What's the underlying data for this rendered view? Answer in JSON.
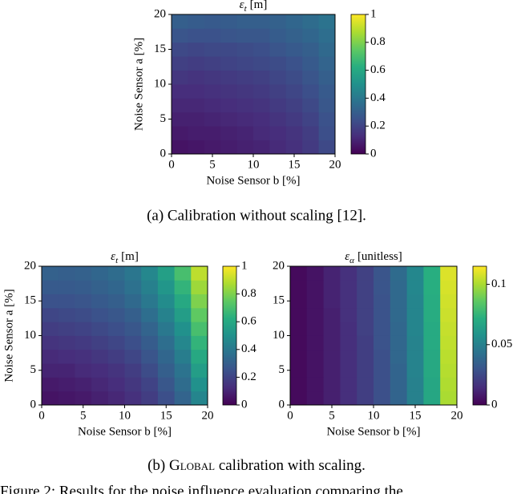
{
  "chart_data": [
    {
      "type": "heatmap",
      "title_symbol": "ε",
      "title_sub": "t",
      "title_unit": "[m]",
      "xlabel": "Noise Sensor b [%]",
      "ylabel": "Noise Sensor a [%]",
      "xlim": [
        0,
        20
      ],
      "ylim": [
        0,
        20
      ],
      "xticks": [
        0,
        5,
        10,
        15,
        20
      ],
      "yticks": [
        0,
        5,
        10,
        15,
        20
      ],
      "colormap": "viridis",
      "zlim": [
        0,
        1
      ],
      "zticks": [
        0,
        0.2,
        0.4,
        0.6,
        0.8,
        1
      ],
      "values": [
        [
          0.05,
          0.06,
          0.07,
          0.08,
          0.09,
          0.1,
          0.12,
          0.14,
          0.17,
          0.22
        ],
        [
          0.07,
          0.08,
          0.08,
          0.09,
          0.1,
          0.12,
          0.13,
          0.15,
          0.18,
          0.24
        ],
        [
          0.09,
          0.09,
          0.1,
          0.11,
          0.12,
          0.13,
          0.15,
          0.17,
          0.2,
          0.25
        ],
        [
          0.11,
          0.11,
          0.12,
          0.13,
          0.14,
          0.15,
          0.17,
          0.19,
          0.22,
          0.27
        ],
        [
          0.13,
          0.13,
          0.14,
          0.15,
          0.16,
          0.17,
          0.19,
          0.21,
          0.24,
          0.28
        ],
        [
          0.16,
          0.15,
          0.16,
          0.17,
          0.18,
          0.19,
          0.21,
          0.23,
          0.26,
          0.3
        ],
        [
          0.19,
          0.18,
          0.19,
          0.2,
          0.21,
          0.22,
          0.23,
          0.25,
          0.28,
          0.32
        ],
        [
          0.22,
          0.21,
          0.22,
          0.22,
          0.23,
          0.24,
          0.26,
          0.28,
          0.3,
          0.34
        ],
        [
          0.26,
          0.25,
          0.25,
          0.26,
          0.27,
          0.27,
          0.29,
          0.31,
          0.33,
          0.36
        ],
        [
          0.3,
          0.29,
          0.28,
          0.29,
          0.3,
          0.3,
          0.31,
          0.33,
          0.35,
          0.38
        ]
      ]
    },
    {
      "type": "heatmap",
      "title_symbol": "ε",
      "title_sub": "t",
      "title_unit": "[m]",
      "xlabel": "Noise Sensor b [%]",
      "ylabel": "Noise Sensor a [%]",
      "xlim": [
        0,
        20
      ],
      "ylim": [
        0,
        20
      ],
      "xticks": [
        0,
        5,
        10,
        15,
        20
      ],
      "yticks": [
        0,
        5,
        10,
        15,
        20
      ],
      "colormap": "viridis",
      "zlim": [
        0,
        1
      ],
      "zticks": [
        0,
        0.2,
        0.4,
        0.6,
        0.8,
        1
      ],
      "values": [
        [
          0.05,
          0.06,
          0.07,
          0.09,
          0.11,
          0.14,
          0.18,
          0.24,
          0.32,
          0.45
        ],
        [
          0.07,
          0.08,
          0.09,
          0.11,
          0.13,
          0.16,
          0.2,
          0.27,
          0.35,
          0.5
        ],
        [
          0.1,
          0.1,
          0.12,
          0.13,
          0.15,
          0.18,
          0.23,
          0.3,
          0.38,
          0.55
        ],
        [
          0.12,
          0.13,
          0.14,
          0.16,
          0.18,
          0.21,
          0.26,
          0.33,
          0.42,
          0.6
        ],
        [
          0.15,
          0.16,
          0.17,
          0.19,
          0.21,
          0.24,
          0.29,
          0.36,
          0.46,
          0.65
        ],
        [
          0.18,
          0.19,
          0.2,
          0.22,
          0.24,
          0.27,
          0.32,
          0.4,
          0.5,
          0.7
        ],
        [
          0.21,
          0.22,
          0.23,
          0.25,
          0.27,
          0.3,
          0.36,
          0.44,
          0.55,
          0.75
        ],
        [
          0.25,
          0.25,
          0.26,
          0.28,
          0.3,
          0.34,
          0.4,
          0.48,
          0.6,
          0.8
        ],
        [
          0.28,
          0.28,
          0.29,
          0.31,
          0.33,
          0.37,
          0.43,
          0.52,
          0.65,
          0.85
        ],
        [
          0.31,
          0.3,
          0.31,
          0.33,
          0.35,
          0.39,
          0.46,
          0.56,
          0.7,
          0.9
        ]
      ]
    },
    {
      "type": "heatmap",
      "title_symbol": "ε",
      "title_sub": "α",
      "title_unit": "[unitless]",
      "xlabel": "Noise Sensor b [%]",
      "xlim": [
        0,
        20
      ],
      "ylim": [
        0,
        20
      ],
      "xticks": [
        0,
        5,
        10,
        15,
        20
      ],
      "yticks": [
        0,
        5,
        10,
        15,
        20
      ],
      "colormap": "viridis",
      "zlim": [
        0,
        0.115
      ],
      "zticks": [
        0,
        0.05,
        0.1
      ],
      "values": [
        [
          0.003,
          0.006,
          0.01,
          0.015,
          0.021,
          0.028,
          0.037,
          0.05,
          0.068,
          0.1
        ],
        [
          0.003,
          0.006,
          0.01,
          0.015,
          0.021,
          0.028,
          0.037,
          0.05,
          0.068,
          0.101
        ],
        [
          0.003,
          0.006,
          0.01,
          0.015,
          0.021,
          0.028,
          0.037,
          0.051,
          0.069,
          0.102
        ],
        [
          0.003,
          0.006,
          0.01,
          0.015,
          0.021,
          0.028,
          0.038,
          0.051,
          0.069,
          0.103
        ],
        [
          0.003,
          0.006,
          0.01,
          0.015,
          0.021,
          0.029,
          0.038,
          0.051,
          0.07,
          0.104
        ],
        [
          0.003,
          0.006,
          0.01,
          0.015,
          0.022,
          0.029,
          0.038,
          0.052,
          0.07,
          0.105
        ],
        [
          0.003,
          0.006,
          0.01,
          0.016,
          0.022,
          0.029,
          0.039,
          0.052,
          0.071,
          0.106
        ],
        [
          0.003,
          0.006,
          0.011,
          0.016,
          0.022,
          0.029,
          0.039,
          0.052,
          0.071,
          0.107
        ],
        [
          0.003,
          0.006,
          0.011,
          0.016,
          0.022,
          0.03,
          0.039,
          0.053,
          0.072,
          0.108
        ],
        [
          0.003,
          0.006,
          0.011,
          0.016,
          0.022,
          0.03,
          0.04,
          0.053,
          0.072,
          0.109
        ]
      ]
    }
  ],
  "caption_a": "(a) Calibration without scaling [12].",
  "caption_b_prefix": "(b) ",
  "caption_b_smallcaps": "Global",
  "caption_b_rest": " calibration with scaling.",
  "figure_caption": "Figure 2: Results for the noise influence evaluation comparing the"
}
